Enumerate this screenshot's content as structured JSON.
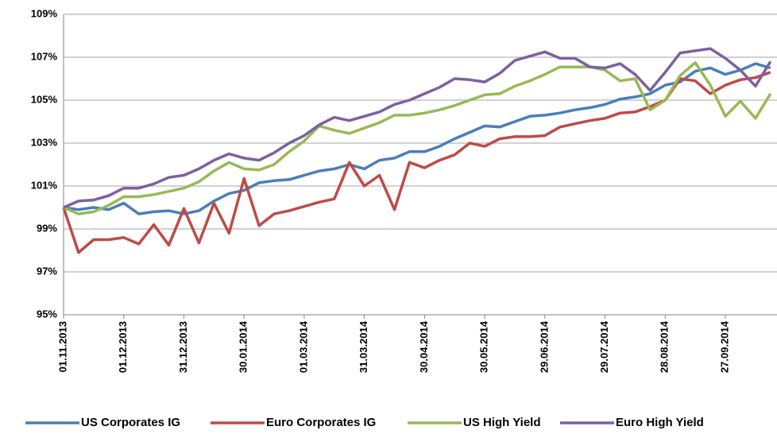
{
  "chart_data": {
    "type": "line",
    "categories": [
      "01.11.2013",
      null,
      null,
      null,
      "01.12.2013",
      null,
      null,
      null,
      "31.12.2013",
      null,
      null,
      null,
      "30.01.2014",
      null,
      null,
      null,
      "01.03.2014",
      null,
      null,
      null,
      "31.03.2014",
      null,
      null,
      null,
      "30.04.2014",
      null,
      null,
      null,
      "30.05.2014",
      null,
      null,
      null,
      "29.06.2014",
      null,
      null,
      null,
      "29.07.2014",
      null,
      null,
      null,
      "28.08.2014",
      null,
      null,
      null,
      "27.09.2014",
      null,
      null,
      null
    ],
    "series": [
      {
        "name": "US Corporates IG",
        "color": "#4a7ebb",
        "values": [
          100,
          99.9,
          100.0,
          99.9,
          100.2,
          99.7,
          99.8,
          99.85,
          99.7,
          99.85,
          100.3,
          100.65,
          100.8,
          101.15,
          101.25,
          101.3,
          101.5,
          101.7,
          101.8,
          102.0,
          101.8,
          102.2,
          102.3,
          102.6,
          102.6,
          102.85,
          103.2,
          103.5,
          103.8,
          103.75,
          104.0,
          104.25,
          104.3,
          104.4,
          104.55,
          104.65,
          104.8,
          105.05,
          105.15,
          105.3,
          105.7,
          105.85,
          106.35,
          106.5,
          106.2,
          106.4,
          106.7,
          106.5
        ]
      },
      {
        "name": "Euro Corporates IG",
        "color": "#be4b48",
        "values": [
          100,
          97.9,
          98.5,
          98.5,
          98.6,
          98.3,
          99.2,
          98.25,
          99.95,
          98.35,
          100.2,
          98.8,
          101.35,
          99.15,
          99.7,
          99.85,
          100.05,
          100.25,
          100.4,
          102.1,
          101.0,
          101.5,
          99.9,
          102.1,
          101.85,
          102.2,
          102.45,
          103.0,
          102.85,
          103.2,
          103.3,
          103.3,
          103.35,
          103.75,
          103.9,
          104.05,
          104.15,
          104.4,
          104.45,
          104.7,
          105.0,
          106.0,
          105.9,
          105.3,
          105.7,
          105.95,
          106.05,
          106.3
        ]
      },
      {
        "name": "US High Yield",
        "color": "#98b954",
        "values": [
          100,
          99.7,
          99.8,
          100.1,
          100.5,
          100.5,
          100.6,
          100.75,
          100.9,
          101.2,
          101.7,
          102.1,
          101.8,
          101.75,
          102.0,
          102.6,
          103.1,
          103.8,
          103.6,
          103.45,
          103.7,
          103.95,
          104.3,
          104.3,
          104.4,
          104.55,
          104.75,
          105.0,
          105.25,
          105.3,
          105.65,
          105.9,
          106.2,
          106.55,
          106.55,
          106.55,
          106.4,
          105.9,
          106.0,
          104.55,
          105.0,
          106.15,
          106.75,
          105.7,
          104.25,
          104.95,
          104.15,
          105.3
        ]
      },
      {
        "name": "Euro High Yield",
        "color": "#7d60a0",
        "values": [
          100,
          100.3,
          100.35,
          100.55,
          100.9,
          100.9,
          101.1,
          101.4,
          101.5,
          101.8,
          102.2,
          102.5,
          102.3,
          102.2,
          102.55,
          103.0,
          103.35,
          103.85,
          104.2,
          104.05,
          104.25,
          104.45,
          104.8,
          105.0,
          105.3,
          105.6,
          106.0,
          105.95,
          105.85,
          106.25,
          106.85,
          107.05,
          107.25,
          106.95,
          106.95,
          106.55,
          106.5,
          106.7,
          106.2,
          105.45,
          106.3,
          107.2,
          107.3,
          107.4,
          106.95,
          106.4,
          105.65,
          106.8
        ]
      }
    ],
    "ylim": [
      95,
      109
    ],
    "yticks": [
      {
        "value": 95,
        "label": "95%"
      },
      {
        "value": 97,
        "label": "97%"
      },
      {
        "value": 99,
        "label": "99%"
      },
      {
        "value": 101,
        "label": "101%"
      },
      {
        "value": 103,
        "label": "103%"
      },
      {
        "value": 105,
        "label": "105%"
      },
      {
        "value": 107,
        "label": "107%"
      },
      {
        "value": 109,
        "label": "109%"
      }
    ],
    "grid": true,
    "legend": "bottom"
  }
}
